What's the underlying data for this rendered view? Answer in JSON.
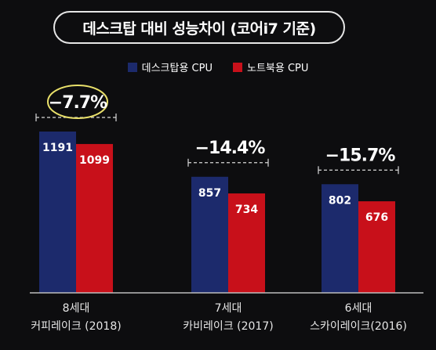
{
  "title": "데스크탑 대비 성능차이 (코어i7 기준)",
  "colors": {
    "desktop": "#1c2a6c",
    "notebook": "#c8101a",
    "axis": "#bdbdbd",
    "highlight": "#e9e06a"
  },
  "chart_data": {
    "type": "bar",
    "title": "데스크탑 대비 성능차이 (코어i7 기준)",
    "categories": [
      {
        "line1": "8세대",
        "line2": "커피레이크 (2018)"
      },
      {
        "line1": "7세대",
        "line2": "카비레이크 (2017)"
      },
      {
        "line1": "6세대",
        "line2": "스카이레이크(2016)"
      }
    ],
    "series": [
      {
        "name": "데스크탑용 CPU",
        "values": [
          1191,
          857,
          802
        ]
      },
      {
        "name": "노트북용 CPU",
        "values": [
          1099,
          734,
          676
        ]
      }
    ],
    "annotations": [
      "−7.7%",
      "−14.4%",
      "−15.7%"
    ],
    "highlighted_annotation": 0,
    "legend_position": "top-center",
    "grid": false
  }
}
